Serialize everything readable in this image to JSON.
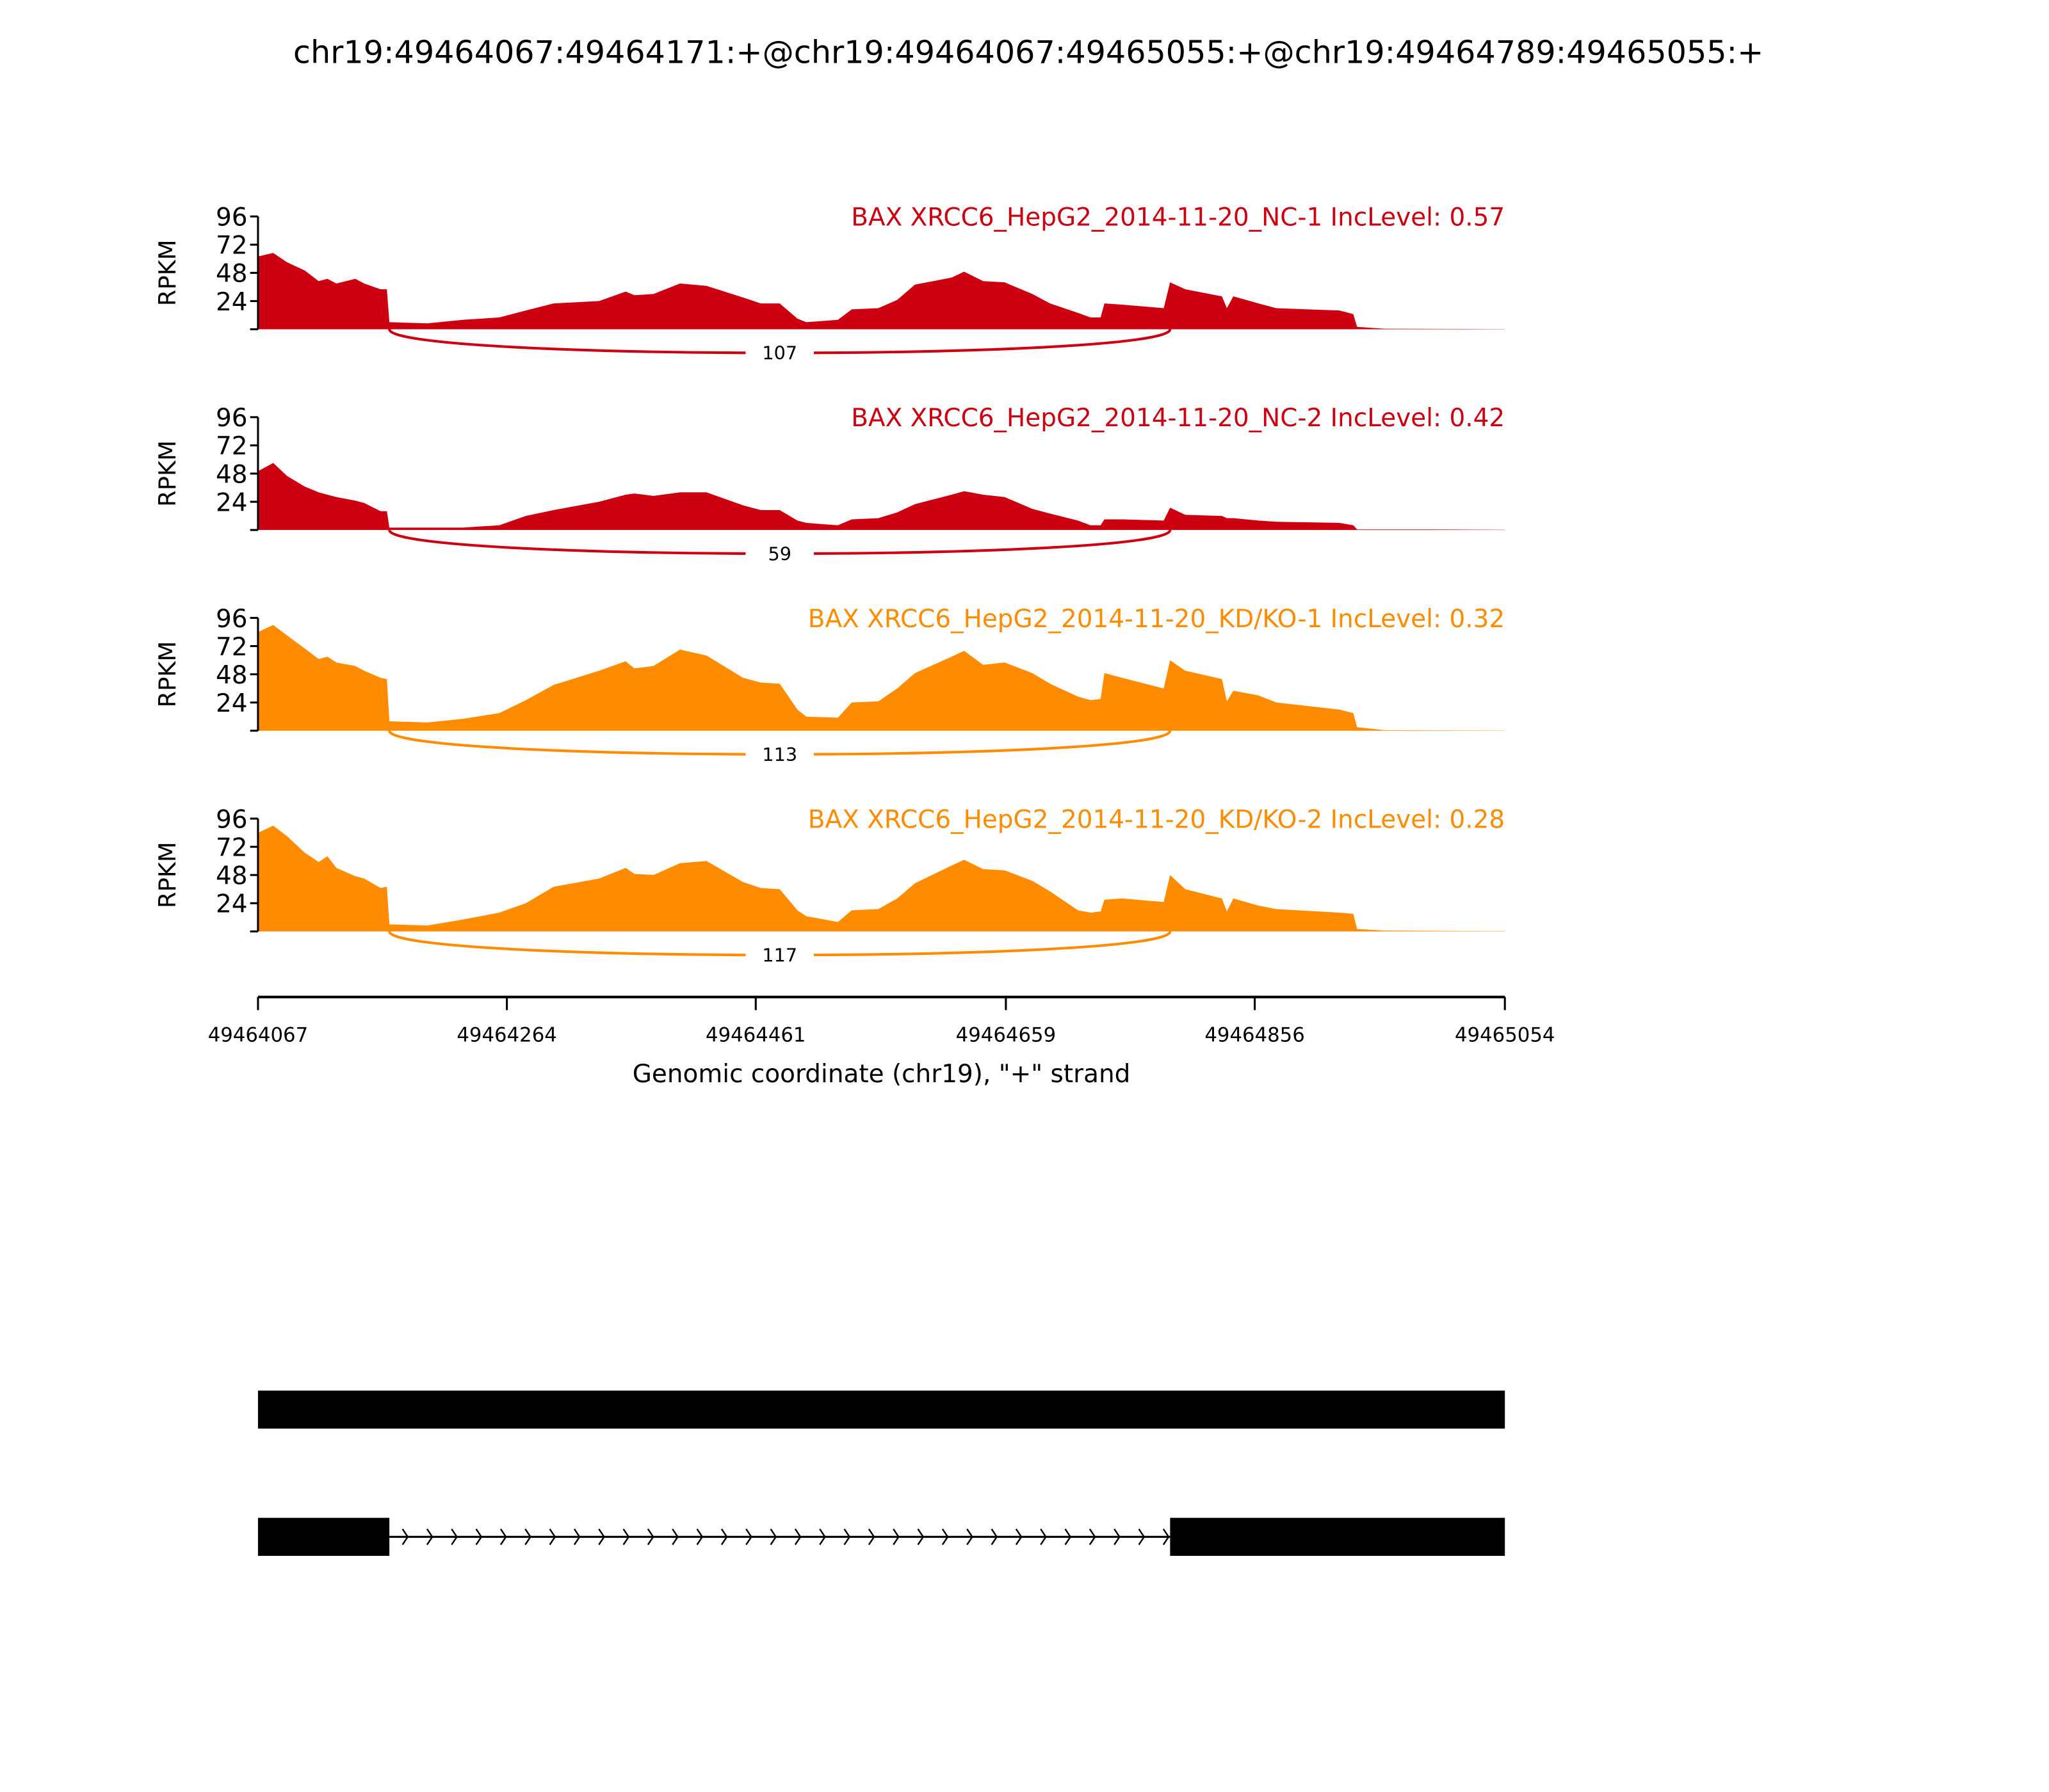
{
  "chart_data": {
    "type": "area",
    "title": "chr19:49464067:49464171:+@chr19:49464067:49465055:+@chr19:49464789:49465055:+",
    "xlabel": "Genomic coordinate (chr19), \"+\" strand",
    "ylabel": "RPKM",
    "xlim": [
      49464067,
      49465054
    ],
    "ylim": [
      0,
      96
    ],
    "yticks": [
      "24",
      "48",
      "72",
      "96"
    ],
    "ytick_values": [
      24,
      48,
      72,
      96
    ],
    "xticks": [
      "49464067",
      "49464264",
      "49464461",
      "49464659",
      "49464856",
      "49465054"
    ],
    "xtick_values": [
      49464067,
      49464264,
      49464461,
      49464659,
      49464856,
      49465054
    ],
    "x": [
      49464067,
      49464079,
      49464090,
      49464104,
      49464115,
      49464122,
      49464129,
      49464144,
      49464151,
      49464164,
      49464169,
      49464171,
      49464201,
      49464229,
      49464258,
      49464279,
      49464301,
      49464337,
      49464358,
      49464365,
      49464380,
      49464401,
      49464422,
      49464451,
      49464465,
      49464480,
      49464494,
      49464501,
      49464526,
      49464537,
      49464558,
      49464573,
      49464587,
      49464616,
      49464626,
      49464641,
      49464658,
      49464680,
      49464694,
      49464716,
      49464726,
      49464734,
      49464737,
      49464751,
      49464784,
      49464789,
      49464801,
      49464830,
      49464834,
      49464839,
      49464859,
      49464873,
      49464923,
      49464934,
      49464937,
      49464959,
      49464998,
      49465054
    ],
    "series": [
      {
        "name": "BAX XRCC6_HepG2_2014-11-20_NC-1 IncLevel: 0.57",
        "color": "#cc0011",
        "values": [
          62,
          65,
          57,
          50,
          41,
          43,
          39,
          43,
          39,
          34,
          34,
          6,
          5,
          8,
          10,
          16,
          22,
          24,
          32,
          29,
          30,
          39,
          37,
          27,
          22,
          22,
          9,
          6,
          8,
          17,
          18,
          25,
          38,
          44,
          49,
          41,
          40,
          30,
          22,
          14,
          10,
          10,
          22,
          21,
          18,
          40,
          34,
          28,
          18,
          28,
          22,
          18,
          16,
          13,
          2,
          0.5,
          0.3,
          0.1
        ],
        "junctions": [
          {
            "start": 49464171,
            "end": 49464789,
            "count": "107"
          }
        ]
      },
      {
        "name": "BAX XRCC6_HepG2_2014-11-20_NC-2 IncLevel: 0.42",
        "color": "#cc0011",
        "values": [
          50,
          57,
          46,
          37,
          32,
          30,
          28,
          25,
          23,
          16,
          16,
          2,
          2,
          2,
          4,
          12,
          17,
          24,
          30,
          31,
          29,
          32,
          32,
          21,
          17,
          17,
          8,
          6,
          4,
          9,
          10,
          15,
          22,
          30,
          33,
          30,
          28,
          18,
          14,
          8,
          4,
          4,
          9,
          9,
          8,
          19,
          13,
          12,
          10,
          10,
          8,
          7,
          6,
          4,
          0.5,
          0.4,
          0.5,
          0.2
        ],
        "junctions": [
          {
            "start": 49464171,
            "end": 49464789,
            "count": "59"
          }
        ]
      },
      {
        "name": "BAX XRCC6_HepG2_2014-11-20_KD/KO-1 IncLevel: 0.32",
        "color": "#ff8c00",
        "values": [
          84,
          90,
          81,
          70,
          61,
          63,
          58,
          55,
          51,
          45,
          44,
          8,
          7,
          10,
          15,
          26,
          39,
          51,
          59,
          53,
          55,
          69,
          64,
          45,
          41,
          40,
          18,
          12,
          11,
          24,
          25,
          36,
          49,
          63,
          68,
          56,
          58,
          49,
          40,
          29,
          26,
          27,
          49,
          45,
          36,
          60,
          51,
          44,
          25,
          34,
          30,
          24,
          18,
          15,
          3,
          0.5,
          0.3,
          0.2
        ],
        "junctions": [
          {
            "start": 49464171,
            "end": 49464789,
            "count": "113"
          }
        ]
      },
      {
        "name": "BAX XRCC6_HepG2_2014-11-20_KD/KO-2 IncLevel: 0.28",
        "color": "#ff8c00",
        "values": [
          84,
          90,
          81,
          67,
          59,
          64,
          54,
          47,
          45,
          37,
          38,
          6,
          5,
          10,
          16,
          24,
          38,
          45,
          54,
          49,
          48,
          58,
          60,
          42,
          37,
          36,
          18,
          13,
          8,
          18,
          19,
          28,
          41,
          56,
          61,
          53,
          52,
          43,
          34,
          18,
          16,
          17,
          27,
          28,
          25,
          48,
          36,
          28,
          17,
          28,
          22,
          19,
          16,
          15,
          2,
          0.7,
          0.5,
          0.2
        ],
        "junctions": [
          {
            "start": 49464171,
            "end": 49464789,
            "count": "117"
          }
        ]
      }
    ],
    "gene_models": [
      {
        "exons": [
          [
            49464067,
            49465055
          ]
        ]
      },
      {
        "exons": [
          [
            49464067,
            49464171
          ],
          [
            49464789,
            49465055
          ]
        ],
        "strand": "+"
      }
    ],
    "grid": false,
    "legend": "none"
  }
}
